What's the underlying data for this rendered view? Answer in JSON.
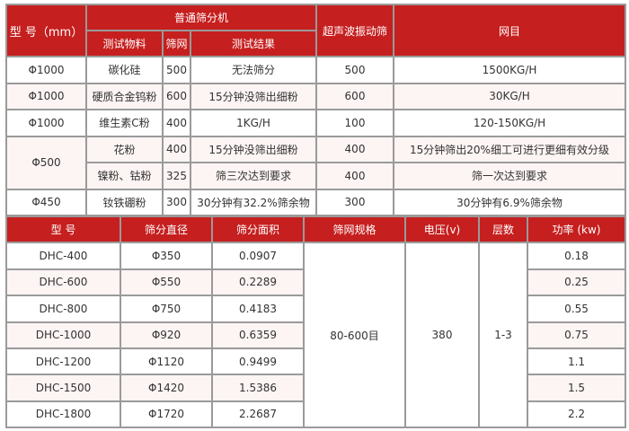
{
  "table1": {
    "headers": {
      "model": "型 号（mm）",
      "normal_screen": "普通筛分机",
      "test_material": "测试物料",
      "mesh": "筛网",
      "test_result": "测试结果",
      "ultrasonic": "超声波振动筛",
      "mesh_result": "网目"
    },
    "rows": [
      {
        "model": "Φ1000",
        "material": "碳化硅",
        "mesh": "500",
        "result": "无法筛分",
        "ultra_mesh": "500",
        "ultra_result": "1500KG/H"
      },
      {
        "model": "Φ1000",
        "material": "硬质合金钨粉",
        "mesh": "600",
        "result": "15分钟没筛出细粉",
        "ultra_mesh": "600",
        "ultra_result": "30KG/H"
      },
      {
        "model": "Φ1000",
        "material": "维生素C粉",
        "mesh": "400",
        "result": "1KG/H",
        "ultra_mesh": "100",
        "ultra_result": "120-150KG/H"
      },
      {
        "model": "Φ500",
        "material": "花粉",
        "mesh": "400",
        "result": "15分钟没筛出细粉",
        "ultra_mesh": "400",
        "ultra_result": "15分钟筛出20%细工可进行更细有效分级"
      },
      {
        "model": "",
        "material": "镍粉、钴粉",
        "mesh": "325",
        "result": "筛三次达到要求",
        "ultra_mesh": "400",
        "ultra_result": "筛一次达到要求"
      },
      {
        "model": "Φ450",
        "material": "钕铁硼粉",
        "mesh": "300",
        "result": "30分钟有32.2%筛余物",
        "ultra_mesh": "300",
        "ultra_result": "30分钟有6.9%筛余物"
      }
    ]
  },
  "table2": {
    "headers": [
      "型 号",
      "筛分直径",
      "筛分面积",
      "筛网规格",
      "电压(v)",
      "层数",
      "功率 (kw)"
    ],
    "shared": {
      "mesh_spec": "80-600目",
      "voltage": "380",
      "layers": "1-3"
    },
    "rows": [
      {
        "model": "DHC-400",
        "diameter": "Φ350",
        "area": "0.0907",
        "power": "0.18"
      },
      {
        "model": "DHC-600",
        "diameter": "Φ550",
        "area": "0.2289",
        "power": "0.25"
      },
      {
        "model": "DHC-800",
        "diameter": "Φ750",
        "area": "0.4183",
        "power": "0.55"
      },
      {
        "model": "DHC-1000",
        "diameter": "Φ920",
        "area": "0.6359",
        "power": "0.75"
      },
      {
        "model": "DHC-1200",
        "diameter": "Φ1120",
        "area": "0.9499",
        "power": "1.1"
      },
      {
        "model": "DHC-1500",
        "diameter": "Φ1420",
        "area": "1.5386",
        "power": "1.5"
      },
      {
        "model": "DHC-1800",
        "diameter": "Φ1720",
        "area": "2.2687",
        "power": "2.2"
      }
    ]
  },
  "colors": {
    "header_bg": "#c61f1f",
    "alt_row_bg": "#fdf4f4",
    "border": "#9a9a9a"
  }
}
